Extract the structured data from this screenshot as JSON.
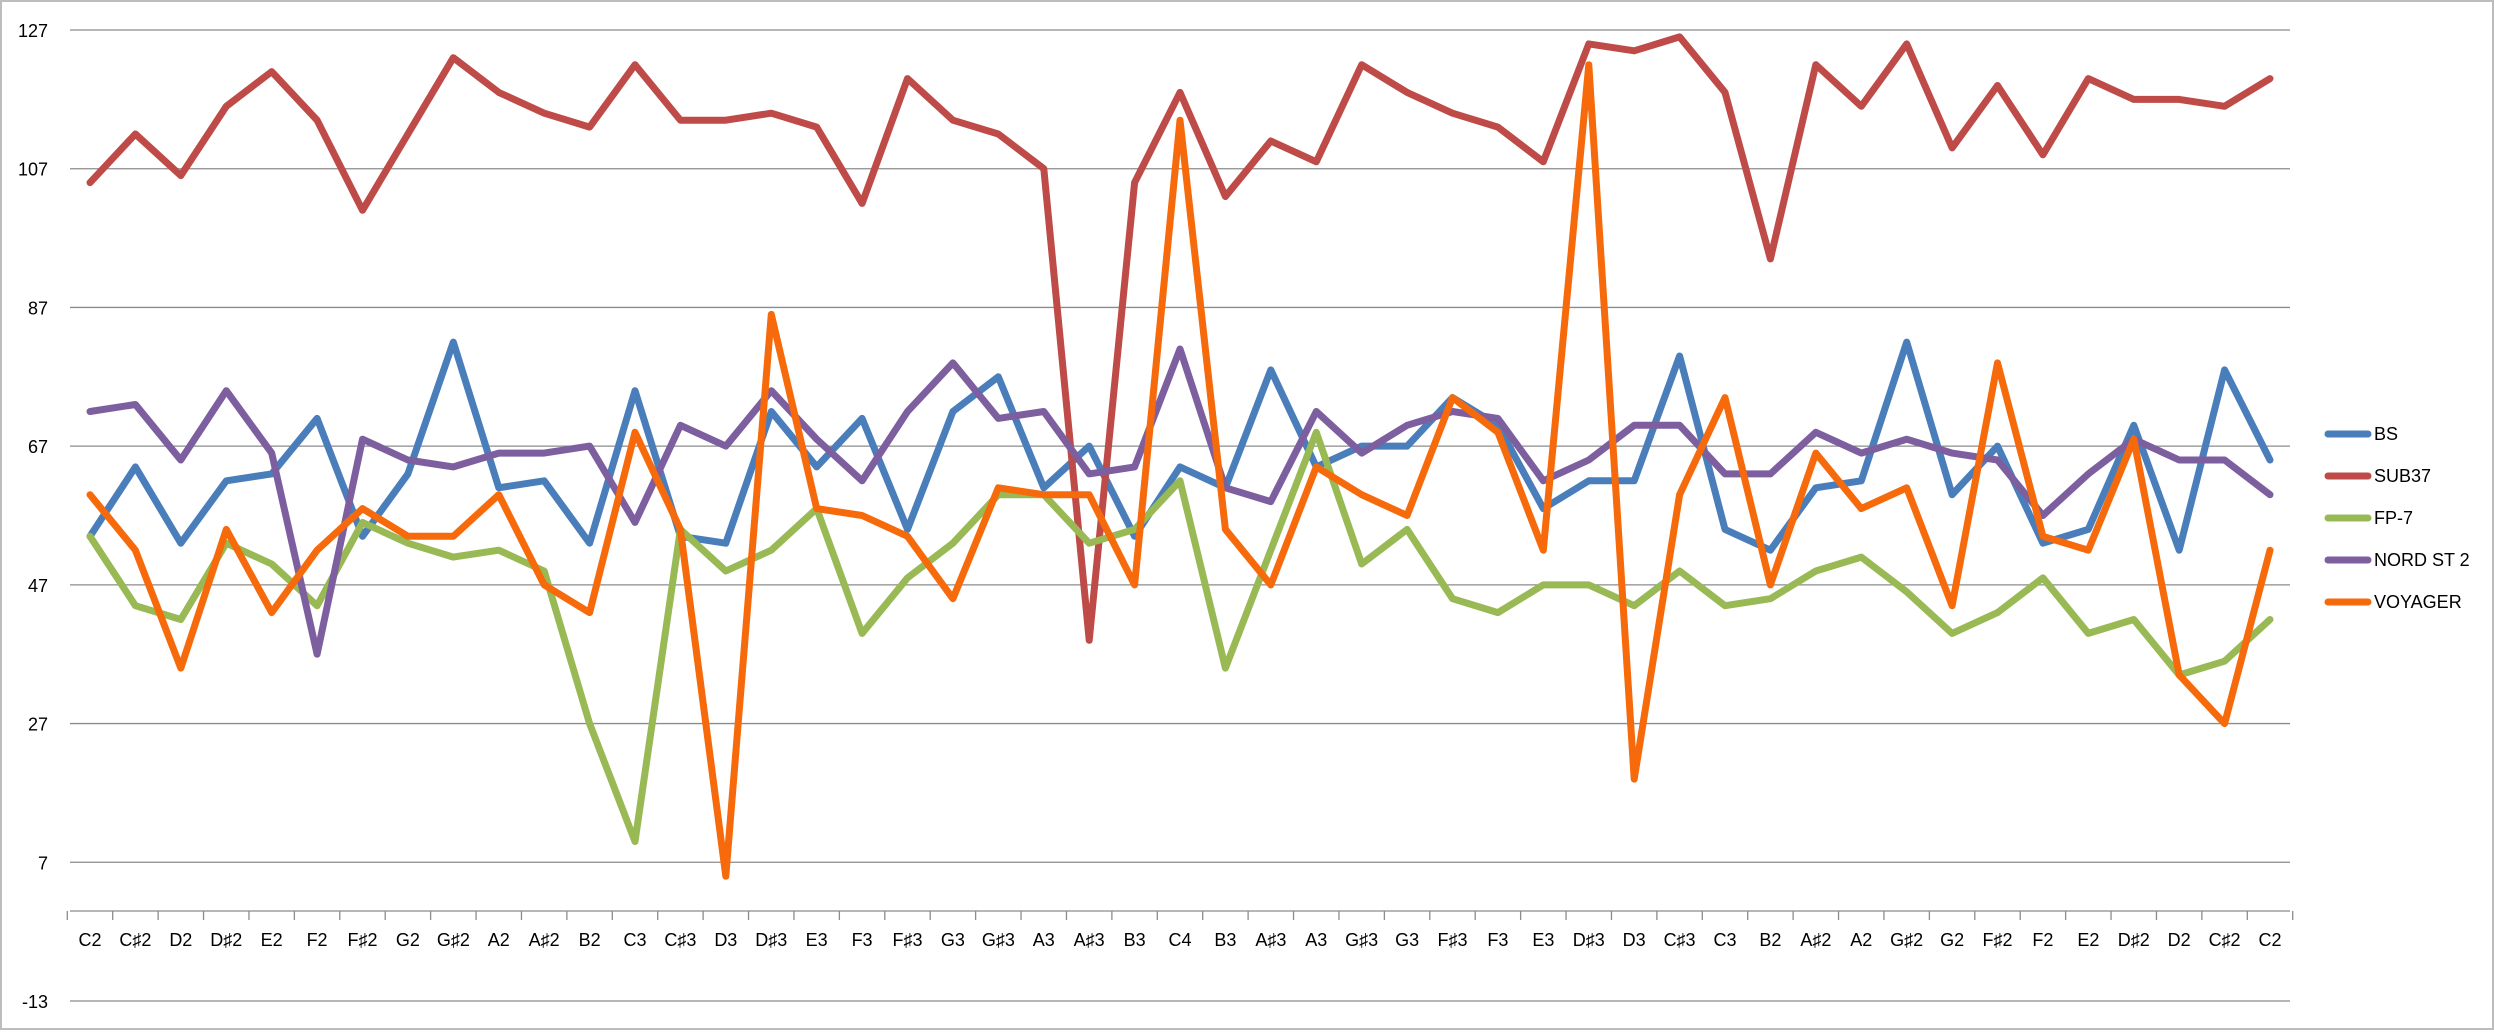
{
  "chart_data": {
    "type": "line",
    "title": "",
    "xlabel": "",
    "ylabel": "",
    "ylim": [
      -13,
      127
    ],
    "yticks": [
      -13,
      7,
      27,
      47,
      67,
      87,
      107,
      127
    ],
    "grid": true,
    "legend_position": "right",
    "categories": [
      "C2",
      "C♯2",
      "D2",
      "D♯2",
      "E2",
      "F2",
      "F♯2",
      "G2",
      "G♯2",
      "A2",
      "A♯2",
      "B2",
      "C3",
      "C♯3",
      "D3",
      "D♯3",
      "E3",
      "F3",
      "F♯3",
      "G3",
      "G♯3",
      "A3",
      "A♯3",
      "B3",
      "C4",
      "B3",
      "A♯3",
      "A3",
      "G♯3",
      "G3",
      "F♯3",
      "F3",
      "E3",
      "D♯3",
      "D3",
      "C♯3",
      "C3",
      "B2",
      "A♯2",
      "A2",
      "G♯2",
      "G2",
      "F♯2",
      "F2",
      "E2",
      "D♯2",
      "D2",
      "C♯2",
      "C2"
    ],
    "series": [
      {
        "name": "BS",
        "color": "#4a7ebb",
        "values": [
          54,
          64,
          53,
          62,
          63,
          71,
          54,
          63,
          82,
          61,
          62,
          53,
          75,
          54,
          53,
          72,
          64,
          71,
          55,
          72,
          77,
          61,
          67,
          54,
          64,
          61,
          78,
          64,
          67,
          67,
          74,
          70,
          58,
          62,
          62,
          80,
          55,
          52,
          61,
          62,
          82,
          60,
          67,
          53,
          55,
          70,
          52,
          78,
          65
        ]
      },
      {
        "name": "SUB37",
        "color": "#be4b48",
        "values": [
          105,
          112,
          106,
          116,
          121,
          114,
          101,
          112,
          123,
          118,
          115,
          113,
          122,
          114,
          114,
          115,
          113,
          102,
          120,
          114,
          112,
          107,
          39,
          105,
          118,
          103,
          111,
          108,
          122,
          118,
          115,
          113,
          108,
          125,
          124,
          126,
          118,
          94,
          122,
          116,
          125,
          110,
          119,
          109,
          120,
          117,
          117,
          116,
          120
        ]
      },
      {
        "name": "FP-7",
        "color": "#98b954",
        "values": [
          54,
          44,
          42,
          53,
          50,
          44,
          56,
          53,
          51,
          52,
          49,
          27,
          10,
          55,
          49,
          52,
          58,
          40,
          48,
          53,
          60,
          60,
          53,
          55,
          62,
          35,
          52,
          69,
          50,
          55,
          45,
          43,
          47,
          47,
          44,
          49,
          44,
          45,
          49,
          51,
          46,
          40,
          43,
          48,
          40,
          42,
          34,
          36,
          42
        ]
      },
      {
        "name": "NORD ST 2",
        "color": "#7d5fa0",
        "values": [
          72,
          73,
          65,
          75,
          66,
          37,
          68,
          65,
          64,
          66,
          66,
          67,
          56,
          70,
          67,
          75,
          68,
          62,
          72,
          79,
          71,
          72,
          63,
          64,
          81,
          61,
          59,
          72,
          66,
          70,
          72,
          71,
          62,
          65,
          70,
          70,
          63,
          63,
          69,
          66,
          68,
          66,
          65,
          57,
          63,
          68,
          65,
          65,
          60
        ]
      },
      {
        "name": "VOYAGER",
        "color": "#f66a0b",
        "values": [
          60,
          52,
          35,
          55,
          43,
          52,
          58,
          54,
          54,
          60,
          47,
          43,
          69,
          55,
          5,
          86,
          58,
          57,
          54,
          45,
          61,
          60,
          60,
          47,
          114,
          55,
          47,
          64,
          60,
          57,
          74,
          69,
          52,
          122,
          19,
          60,
          74,
          47,
          66,
          58,
          61,
          44,
          79,
          54,
          52,
          68,
          34,
          27,
          52
        ]
      }
    ]
  }
}
